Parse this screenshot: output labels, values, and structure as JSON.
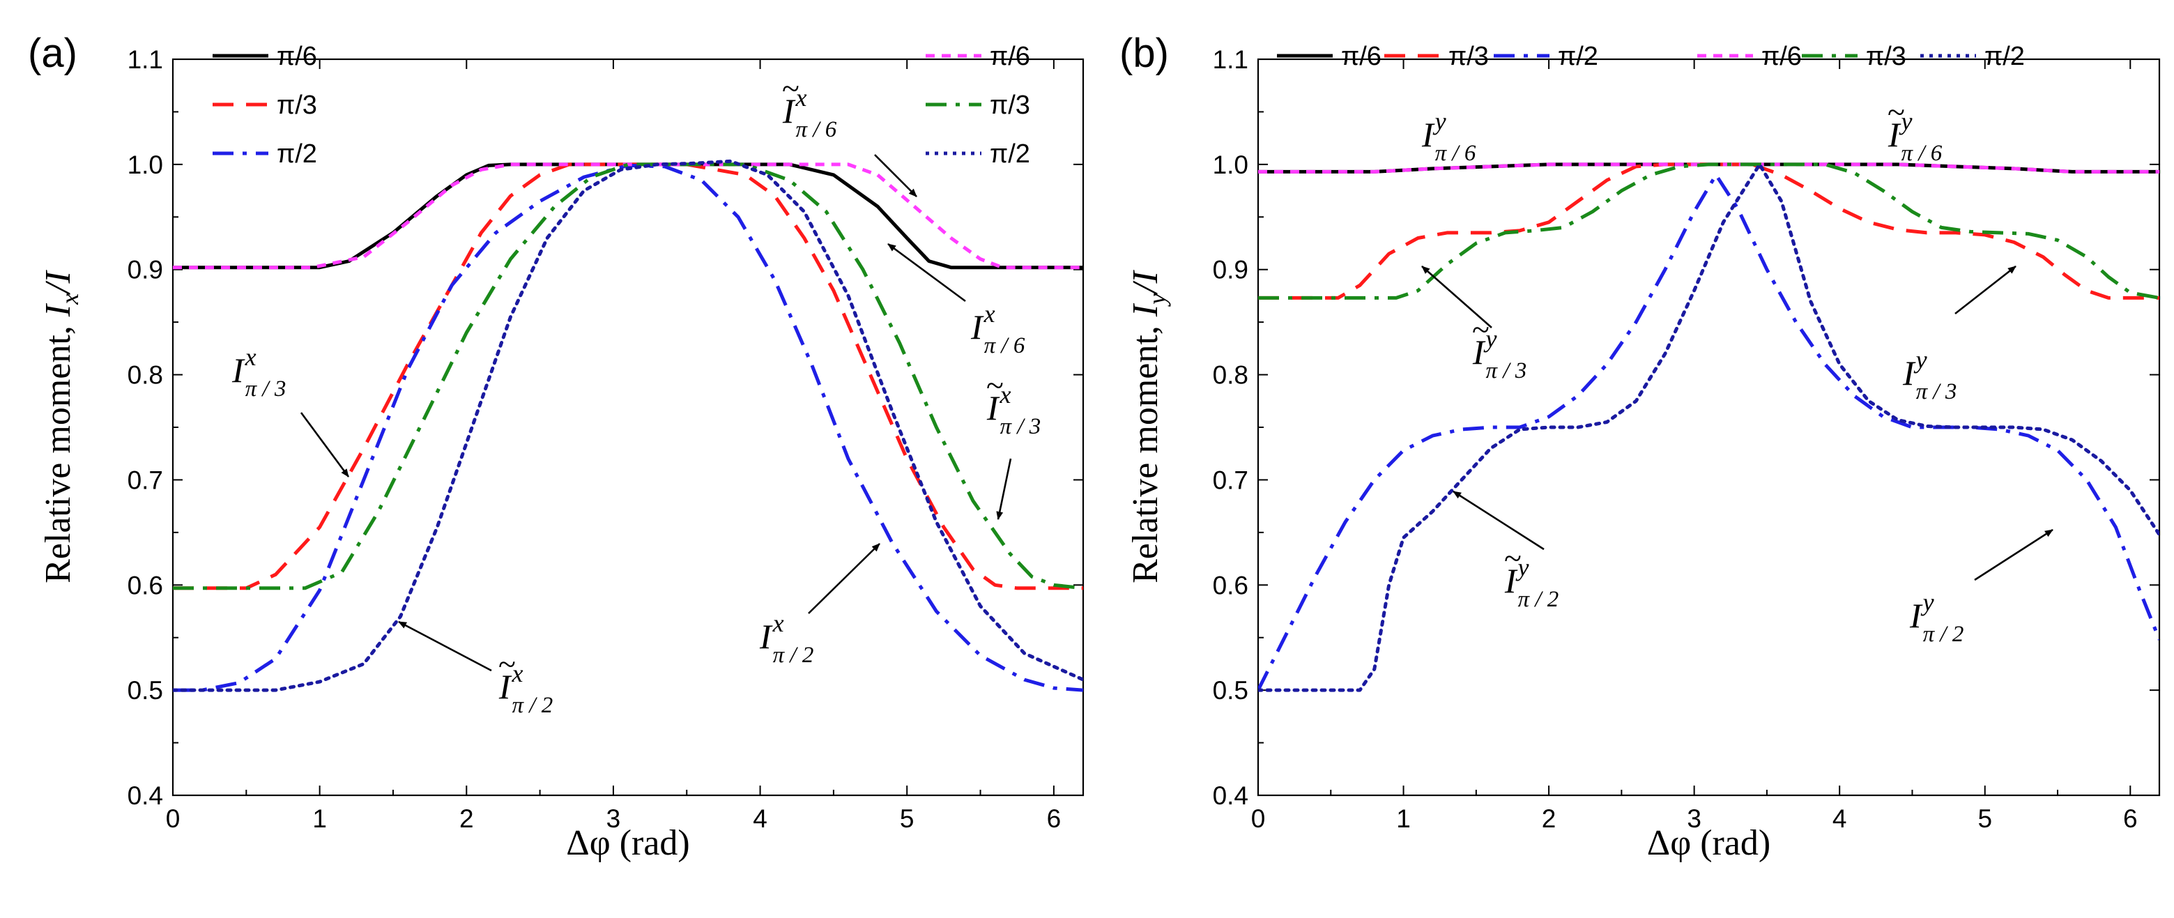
{
  "chart_data": [
    {
      "type": "line",
      "panel_label": "(a)",
      "xlabel": "Δφ  (rad)",
      "ylabel_main": "Relative moment, ",
      "ylabel_italic": "I",
      "ylabel_sub": "x",
      "ylabel_tail": "/I",
      "xlim": [
        0,
        6.2
      ],
      "ylim": [
        0.4,
        1.1
      ],
      "xticks": [
        "0",
        "1",
        "2",
        "3",
        "4",
        "5",
        "6"
      ],
      "yticks": [
        "0.4",
        "0.5",
        "0.6",
        "0.7",
        "0.8",
        "0.9",
        "1.0",
        "1.1"
      ],
      "legend_location": "top",
      "series": [
        {
          "name": "π/6",
          "style": "solid",
          "color": "#000000",
          "x": [
            0,
            1.0,
            1.2,
            1.5,
            1.8,
            2.0,
            2.15,
            2.3,
            4.2,
            4.5,
            4.8,
            5.0,
            5.15,
            5.3,
            6.2
          ],
          "y": [
            0.902,
            0.902,
            0.908,
            0.935,
            0.97,
            0.99,
            0.999,
            1.0,
            1.0,
            0.99,
            0.96,
            0.93,
            0.908,
            0.902,
            0.902
          ]
        },
        {
          "name": "π/3",
          "style": "dash",
          "color": "#ff1a1a",
          "x": [
            0,
            0.5,
            0.7,
            1.0,
            1.3,
            1.6,
            1.9,
            2.1,
            2.3,
            2.5,
            2.7,
            3.5,
            3.9,
            4.1,
            4.3,
            4.5,
            4.75,
            5.0,
            5.25,
            5.45,
            5.6,
            5.75,
            6.2
          ],
          "y": [
            0.597,
            0.597,
            0.61,
            0.655,
            0.73,
            0.81,
            0.885,
            0.935,
            0.97,
            0.99,
            1.0,
            1.0,
            0.99,
            0.97,
            0.93,
            0.88,
            0.8,
            0.72,
            0.655,
            0.615,
            0.6,
            0.597,
            0.597
          ]
        },
        {
          "name": "π/2",
          "style": "dashdot",
          "color": "#1f1fe6",
          "x": [
            0,
            0.2,
            0.45,
            0.7,
            1.0,
            1.3,
            1.6,
            1.9,
            2.2,
            2.5,
            2.8,
            3.1,
            3.35,
            3.6,
            3.85,
            4.1,
            4.35,
            4.6,
            4.9,
            5.2,
            5.5,
            5.8,
            6.0,
            6.2
          ],
          "y": [
            0.5,
            0.5,
            0.507,
            0.53,
            0.595,
            0.7,
            0.805,
            0.885,
            0.935,
            0.965,
            0.988,
            0.999,
            0.998,
            0.985,
            0.95,
            0.89,
            0.81,
            0.72,
            0.64,
            0.575,
            0.533,
            0.51,
            0.502,
            0.5
          ]
        },
        {
          "name": "π/6",
          "style": "shortdash",
          "color": "#ff3cff",
          "tilde": true,
          "x": [
            0,
            0.95,
            1.3,
            1.6,
            1.9,
            2.1,
            2.3,
            2.5,
            4.6,
            4.8,
            5.05,
            5.3,
            5.5,
            5.65,
            6.2
          ],
          "y": [
            0.902,
            0.902,
            0.912,
            0.945,
            0.98,
            0.995,
            1.0,
            1.0,
            1.0,
            0.99,
            0.96,
            0.93,
            0.91,
            0.902,
            0.902
          ]
        },
        {
          "name": "π/3",
          "style": "dashdot",
          "color": "#1a8a1a",
          "tilde": true,
          "x": [
            0,
            0.9,
            1.15,
            1.4,
            1.7,
            2.0,
            2.3,
            2.6,
            2.85,
            3.1,
            3.9,
            4.2,
            4.45,
            4.7,
            4.95,
            5.2,
            5.45,
            5.7,
            5.85,
            6.0,
            6.2
          ],
          "y": [
            0.597,
            0.597,
            0.612,
            0.67,
            0.755,
            0.84,
            0.91,
            0.96,
            0.988,
            1.0,
            1.0,
            0.985,
            0.955,
            0.9,
            0.83,
            0.75,
            0.68,
            0.63,
            0.608,
            0.6,
            0.597
          ]
        },
        {
          "name": "π/2",
          "style": "dot",
          "color": "#1a1aa0",
          "tilde": true,
          "x": [
            0,
            0.7,
            1.0,
            1.3,
            1.55,
            1.8,
            2.05,
            2.3,
            2.55,
            2.8,
            3.05,
            3.3,
            3.55,
            3.8,
            4.05,
            4.3,
            4.6,
            4.9,
            5.2,
            5.5,
            5.8,
            6.2
          ],
          "y": [
            0.5,
            0.5,
            0.508,
            0.525,
            0.57,
            0.655,
            0.755,
            0.855,
            0.93,
            0.975,
            0.995,
            1.0,
            1.001,
            1.003,
            0.99,
            0.955,
            0.875,
            0.765,
            0.66,
            0.58,
            0.535,
            0.51
          ]
        }
      ],
      "annotations": [
        {
          "tilde": false,
          "sup": "x",
          "sub": "π / 6"
        },
        {
          "tilde": false,
          "sup": "x",
          "sub": "π / 3"
        },
        {
          "tilde": true,
          "sup": "x",
          "sub": "π / 6"
        },
        {
          "tilde": true,
          "sup": "x",
          "sub": "π / 3"
        },
        {
          "tilde": false,
          "sup": "x",
          "sub": "π / 2"
        },
        {
          "tilde": true,
          "sup": "x",
          "sub": "π / 2"
        }
      ]
    },
    {
      "type": "line",
      "panel_label": "(b)",
      "xlabel": "Δφ  (rad)",
      "ylabel_main": "Relative moment, ",
      "ylabel_italic": "I",
      "ylabel_sub": "y",
      "ylabel_tail": "/I",
      "xlim": [
        0,
        6.2
      ],
      "ylim": [
        0.4,
        1.1
      ],
      "xticks": [
        "0",
        "1",
        "2",
        "3",
        "4",
        "5",
        "6"
      ],
      "yticks": [
        "0.4",
        "0.5",
        "0.6",
        "0.7",
        "0.8",
        "0.9",
        "1.0",
        "1.1"
      ],
      "legend_location": "top",
      "series": [
        {
          "name": "π/6",
          "style": "solid",
          "color": "#000000",
          "x": [
            0,
            0.8,
            1.2,
            2.0,
            2.8,
            3.2,
            3.6,
            4.4,
            5.2,
            5.6,
            6.2
          ],
          "y": [
            0.993,
            0.993,
            0.996,
            1.0,
            1.0,
            1.0,
            1.0,
            1.0,
            0.996,
            0.993,
            0.993
          ]
        },
        {
          "name": "π/3",
          "style": "dash",
          "color": "#ff1a1a",
          "x": [
            0,
            0.55,
            0.7,
            0.9,
            1.1,
            1.3,
            1.6,
            1.8,
            2.0,
            2.2,
            2.4,
            2.6,
            2.8,
            3.1,
            3.4,
            3.6,
            3.8,
            4.0,
            4.2,
            4.4,
            4.6,
            4.8,
            5.0,
            5.2,
            5.4,
            5.55,
            5.7,
            5.85,
            6.0,
            6.2
          ],
          "y": [
            0.873,
            0.873,
            0.885,
            0.915,
            0.93,
            0.935,
            0.935,
            0.937,
            0.945,
            0.965,
            0.985,
            0.998,
            1.0,
            1.0,
            1.0,
            0.99,
            0.975,
            0.958,
            0.945,
            0.938,
            0.935,
            0.935,
            0.933,
            0.926,
            0.912,
            0.895,
            0.88,
            0.873,
            0.873,
            0.873
          ]
        },
        {
          "name": "π/2",
          "style": "dashdot",
          "color": "#1f1fe6",
          "x": [
            0,
            0.2,
            0.4,
            0.6,
            0.8,
            1.0,
            1.2,
            1.4,
            1.6,
            1.8,
            2.0,
            2.2,
            2.4,
            2.6,
            2.8,
            3.0,
            3.15,
            3.3,
            3.5,
            3.7,
            3.9,
            4.1,
            4.3,
            4.5,
            4.7,
            4.9,
            5.1,
            5.3,
            5.5,
            5.7,
            5.9,
            6.05,
            6.2
          ],
          "y": [
            0.5,
            0.555,
            0.61,
            0.66,
            0.7,
            0.728,
            0.742,
            0.748,
            0.75,
            0.75,
            0.76,
            0.78,
            0.81,
            0.85,
            0.9,
            0.955,
            0.99,
            0.958,
            0.9,
            0.85,
            0.81,
            0.78,
            0.76,
            0.75,
            0.75,
            0.75,
            0.748,
            0.742,
            0.728,
            0.7,
            0.655,
            0.6,
            0.548
          ]
        },
        {
          "name": "π/6",
          "style": "shortdash",
          "color": "#ff3cff",
          "tilde": true,
          "x": [
            0,
            0.8,
            1.2,
            2.0,
            2.8,
            3.2,
            3.6,
            4.4,
            5.2,
            5.6,
            6.2
          ],
          "y": [
            0.993,
            0.993,
            0.996,
            1.0,
            1.0,
            1.0,
            1.0,
            1.0,
            0.996,
            0.993,
            0.993
          ]
        },
        {
          "name": "π/3",
          "style": "dashdot",
          "color": "#1a8a1a",
          "tilde": true,
          "x": [
            0,
            0.95,
            1.1,
            1.3,
            1.5,
            1.7,
            1.9,
            2.1,
            2.3,
            2.5,
            2.7,
            2.9,
            3.1,
            3.6,
            3.9,
            4.1,
            4.3,
            4.5,
            4.7,
            4.9,
            5.1,
            5.3,
            5.5,
            5.7,
            5.85,
            6.0,
            6.2
          ],
          "y": [
            0.873,
            0.873,
            0.88,
            0.905,
            0.925,
            0.935,
            0.937,
            0.94,
            0.955,
            0.975,
            0.99,
            0.998,
            1.0,
            1.0,
            1.0,
            0.992,
            0.975,
            0.955,
            0.94,
            0.936,
            0.935,
            0.934,
            0.928,
            0.912,
            0.893,
            0.878,
            0.873
          ]
        },
        {
          "name": "π/2",
          "style": "dot",
          "color": "#1a1aa0",
          "tilde": true,
          "x": [
            0,
            0.7,
            0.8,
            0.9,
            1.0,
            1.2,
            1.4,
            1.6,
            1.8,
            2.0,
            2.2,
            2.4,
            2.6,
            2.8,
            3.0,
            3.2,
            3.45,
            3.6,
            3.8,
            4.0,
            4.2,
            4.4,
            4.6,
            4.8,
            5.0,
            5.2,
            5.4,
            5.6,
            5.8,
            6.0,
            6.2
          ],
          "y": [
            0.5,
            0.5,
            0.52,
            0.6,
            0.645,
            0.67,
            0.7,
            0.73,
            0.748,
            0.75,
            0.75,
            0.755,
            0.775,
            0.82,
            0.88,
            0.945,
            1.0,
            0.965,
            0.87,
            0.81,
            0.775,
            0.757,
            0.751,
            0.75,
            0.75,
            0.75,
            0.748,
            0.738,
            0.718,
            0.69,
            0.648
          ]
        }
      ],
      "annotations": [
        {
          "tilde": false,
          "sup": "y",
          "sub": "π / 6"
        },
        {
          "tilde": true,
          "sup": "y",
          "sub": "π / 6"
        },
        {
          "tilde": true,
          "sup": "y",
          "sub": "π / 3"
        },
        {
          "tilde": false,
          "sup": "y",
          "sub": "π / 3"
        },
        {
          "tilde": true,
          "sup": "y",
          "sub": "π / 2"
        },
        {
          "tilde": false,
          "sup": "y",
          "sub": "π / 2"
        }
      ]
    }
  ]
}
